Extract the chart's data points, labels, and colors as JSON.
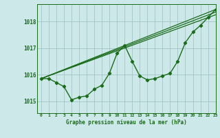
{
  "title": "Graphe pression niveau de la mer (hPa)",
  "xlabel": "Graphe pression niveau de la mer (hPa)",
  "xlim": [
    -0.5,
    23
  ],
  "ylim": [
    1014.55,
    1018.65
  ],
  "yticks": [
    1015,
    1016,
    1017,
    1018
  ],
  "xticks": [
    0,
    1,
    2,
    3,
    4,
    5,
    6,
    7,
    8,
    9,
    10,
    11,
    12,
    13,
    14,
    15,
    16,
    17,
    18,
    19,
    20,
    21,
    22,
    23
  ],
  "background_color": "#cce8e8",
  "grid_color": "#9bbfbf",
  "line_color": "#1a6b1a",
  "series": [
    {
      "x": [
        0,
        1,
        2,
        3,
        4,
        5,
        6,
        7,
        8,
        9,
        10,
        11,
        12,
        13,
        14,
        15,
        16,
        17,
        18,
        19,
        20,
        21,
        22,
        23
      ],
      "y": [
        1015.85,
        1015.85,
        1015.7,
        1015.55,
        1015.05,
        1015.15,
        1015.2,
        1015.45,
        1015.6,
        1016.05,
        1016.8,
        1017.1,
        1016.5,
        1015.95,
        1015.8,
        1015.85,
        1015.95,
        1016.05,
        1016.5,
        1017.2,
        1017.6,
        1017.85,
        1018.15,
        1018.45
      ],
      "marker": true,
      "linewidth": 1.0
    },
    {
      "x": [
        0,
        23
      ],
      "y": [
        1015.85,
        1018.45
      ],
      "marker": false,
      "linewidth": 0.9
    },
    {
      "x": [
        0,
        23
      ],
      "y": [
        1015.85,
        1018.35
      ],
      "marker": false,
      "linewidth": 0.9
    },
    {
      "x": [
        0,
        23
      ],
      "y": [
        1015.85,
        1018.25
      ],
      "marker": false,
      "linewidth": 0.9
    }
  ],
  "figsize": [
    3.2,
    2.0
  ],
  "dpi": 100
}
